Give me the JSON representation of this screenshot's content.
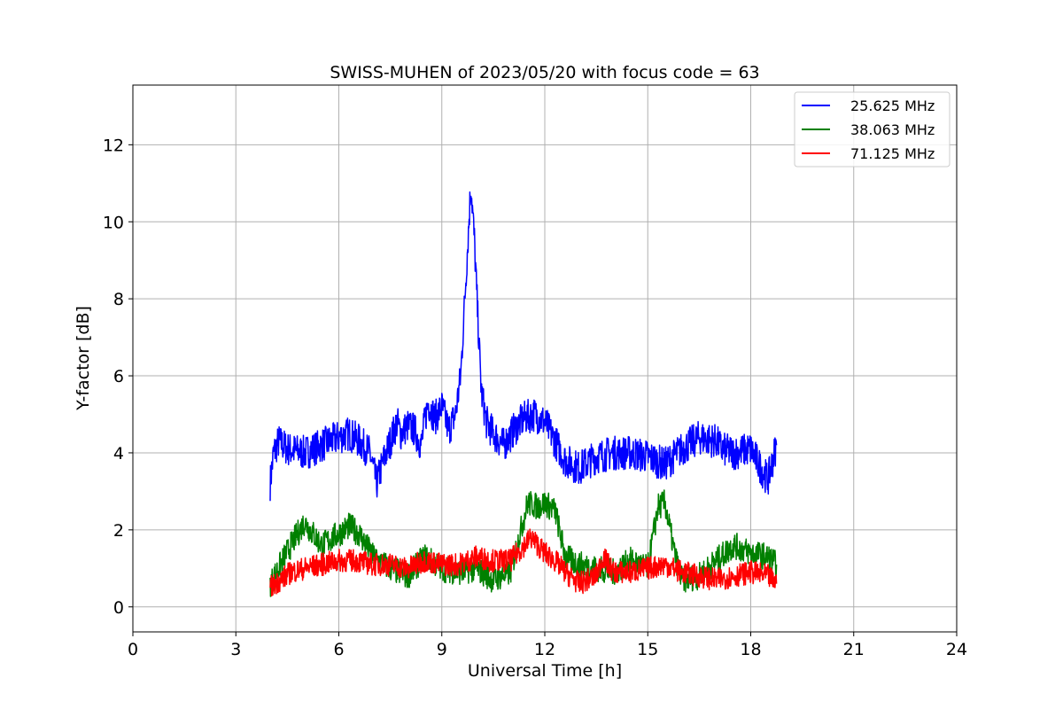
{
  "chart_data": {
    "type": "line",
    "title": "SWISS-MUHEN of 2023/05/20 with focus code = 63",
    "xlabel": "Universal Time [h]",
    "ylabel": "Y-factor [dB]",
    "xlim": [
      0,
      24
    ],
    "ylim": [
      -0.65,
      13.55
    ],
    "xticks": [
      0,
      3,
      6,
      9,
      12,
      15,
      18,
      21,
      24
    ],
    "yticks": [
      0,
      2,
      4,
      6,
      8,
      10,
      12
    ],
    "grid": true,
    "legend_position": "top-right",
    "series": [
      {
        "name": "25.625 MHz",
        "color": "#0000ff",
        "x": [
          4.0,
          4.1,
          4.25,
          4.5,
          5.0,
          5.5,
          6.0,
          6.3,
          6.6,
          6.9,
          7.1,
          7.3,
          7.5,
          7.7,
          7.8,
          8.0,
          8.2,
          8.4,
          8.5,
          8.6,
          8.8,
          9.0,
          9.2,
          9.4,
          9.55,
          9.7,
          9.85,
          9.95,
          10.05,
          10.15,
          10.3,
          10.5,
          10.8,
          11.1,
          11.4,
          11.7,
          12.0,
          12.3,
          12.6,
          13.0,
          13.5,
          14.0,
          14.5,
          15.0,
          15.5,
          16.0,
          16.5,
          17.0,
          17.15,
          17.5,
          18.0,
          18.3,
          18.5,
          18.75
        ],
        "y": [
          3.2,
          4.0,
          4.3,
          4.1,
          4.0,
          4.2,
          4.4,
          4.5,
          4.3,
          4.0,
          3.2,
          3.8,
          4.3,
          4.8,
          4.5,
          4.7,
          4.6,
          4.2,
          4.8,
          5.3,
          4.9,
          5.2,
          4.6,
          5.0,
          6.0,
          8.5,
          11.0,
          9.5,
          7.5,
          5.6,
          4.8,
          4.5,
          4.2,
          4.6,
          4.9,
          5.0,
          4.8,
          4.3,
          3.8,
          3.6,
          3.9,
          4.0,
          4.0,
          3.9,
          3.7,
          4.1,
          4.4,
          4.3,
          4.1,
          4.0,
          4.1,
          3.6,
          3.3,
          4.2
        ]
      },
      {
        "name": "38.063 MHz",
        "color": "#008000",
        "x": [
          4.0,
          4.3,
          4.6,
          5.0,
          5.5,
          6.0,
          6.3,
          6.6,
          7.0,
          7.5,
          8.0,
          8.5,
          9.0,
          9.5,
          10.0,
          10.5,
          11.0,
          11.5,
          11.8,
          12.0,
          12.3,
          12.6,
          13.0,
          13.5,
          14.0,
          14.5,
          15.0,
          15.3,
          15.5,
          15.8,
          16.0,
          16.5,
          17.0,
          17.5,
          18.0,
          18.5,
          18.75
        ],
        "y": [
          0.6,
          1.1,
          1.6,
          2.2,
          1.6,
          1.9,
          2.1,
          1.9,
          1.3,
          1.0,
          0.8,
          1.3,
          1.0,
          0.9,
          1.0,
          0.7,
          0.9,
          2.7,
          2.6,
          2.7,
          2.5,
          1.3,
          1.1,
          1.0,
          0.9,
          1.2,
          1.0,
          2.6,
          2.7,
          1.3,
          0.7,
          0.8,
          1.2,
          1.6,
          1.4,
          1.3,
          1.1
        ]
      },
      {
        "name": "71.125 MHz",
        "color": "#ff0000",
        "x": [
          4.0,
          4.3,
          4.6,
          5.0,
          5.5,
          6.0,
          6.5,
          7.0,
          7.5,
          8.0,
          8.5,
          9.0,
          9.5,
          10.0,
          10.5,
          11.0,
          11.3,
          11.6,
          12.0,
          12.3,
          12.6,
          13.0,
          13.5,
          13.7,
          14.0,
          14.5,
          15.0,
          15.5,
          16.0,
          16.5,
          17.0,
          17.5,
          18.0,
          18.5,
          18.75
        ],
        "y": [
          0.5,
          0.7,
          0.9,
          1.0,
          1.1,
          1.2,
          1.2,
          1.1,
          1.1,
          1.0,
          1.2,
          1.1,
          1.1,
          1.3,
          1.2,
          1.2,
          1.5,
          1.8,
          1.4,
          1.2,
          0.9,
          0.6,
          0.8,
          1.3,
          0.9,
          0.9,
          1.0,
          1.1,
          0.9,
          0.8,
          0.7,
          0.8,
          0.9,
          0.8,
          0.6
        ]
      }
    ]
  }
}
